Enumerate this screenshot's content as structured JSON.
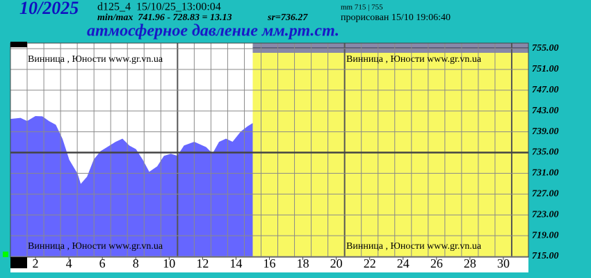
{
  "chart_data": {
    "type": "area",
    "header": "10/2025",
    "station_code": "d125_4  15/10/25_13:00:04",
    "minmax": "min/max  741.96 - 728.83 = 13.13",
    "mean": "sr=736.27",
    "range_note": "mm 715 | 755",
    "drawn": "прорисован 15/10 19:06:40",
    "title": "атмосферное давление мм.рт.ст.",
    "watermark": "Винница , Юности  www.gr.vn.ua",
    "x": [
      0.5,
      1.1,
      1.5,
      2,
      2.4,
      2.8,
      3.2,
      3.6,
      4,
      4.5,
      4.7,
      5.1,
      5.5,
      5.9,
      6.3,
      6.8,
      7.2,
      7.6,
      8,
      8.4,
      8.8,
      9.3,
      9.7,
      10.1,
      10.5,
      10.9,
      11.5,
      12.2,
      12.6,
      13,
      13.4,
      13.8,
      14.3,
      14.7,
      15
    ],
    "values": [
      741.4,
      741.6,
      741.0,
      741.96,
      741.9,
      741.0,
      740.3,
      737.6,
      733.6,
      730.9,
      728.83,
      730.3,
      733.6,
      735.2,
      736.0,
      737.0,
      737.6,
      736.3,
      735.6,
      733.6,
      731.2,
      732.3,
      734.3,
      734.7,
      734.3,
      736.3,
      737.0,
      736.0,
      734.7,
      737.0,
      737.6,
      737.0,
      739.0,
      740.0,
      740.6
    ],
    "color": "#6666ff",
    "future_color": "#f8f862",
    "ref_line": 735,
    "xlim": [
      0.5,
      31.5
    ],
    "xticks": [
      2,
      4,
      6,
      8,
      10,
      12,
      14,
      16,
      18,
      20,
      22,
      24,
      26,
      28,
      30
    ],
    "ylim": [
      715,
      755
    ],
    "yticks": [
      {
        "value": 715,
        "label": "715.00"
      },
      {
        "value": 719,
        "label": "719.00"
      },
      {
        "value": 723,
        "label": "723.00"
      },
      {
        "value": 727,
        "label": "727.00"
      },
      {
        "value": 731,
        "label": "731.00"
      },
      {
        "value": 735,
        "label": "735.00"
      },
      {
        "value": 739,
        "label": "739.00"
      },
      {
        "value": 743,
        "label": "743.00"
      },
      {
        "value": 747,
        "label": "747.00"
      },
      {
        "value": 751,
        "label": "751.00"
      },
      {
        "value": 755,
        "label": "755.00"
      }
    ],
    "grid": true
  }
}
